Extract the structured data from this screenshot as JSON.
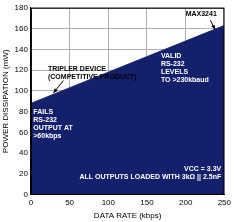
{
  "chart_data": {
    "type": "area",
    "x_label": "DATA RATE (kbps)",
    "y_label": "POWER DISSIPATION (mW)",
    "x": [
      0,
      250
    ],
    "values": [
      88,
      163
    ],
    "color": "#14206b",
    "xlim": [
      0,
      250
    ],
    "xticks": [
      0,
      50,
      100,
      150,
      200,
      250
    ],
    "ylim": [
      0,
      180
    ],
    "yticks": [
      0,
      20,
      40,
      60,
      80,
      100,
      120,
      140,
      160,
      180
    ],
    "grid": true,
    "annotations": [
      {
        "text": [
          "TRIPLER DEVICE",
          "(COMPETITIVE PRODUCT)"
        ]
      },
      {
        "text": [
          "FAILS",
          "RS-232",
          "OUTPUT AT",
          ">60kbps"
        ]
      },
      {
        "text": [
          "MAX3241"
        ]
      },
      {
        "text": [
          "VALID",
          "RS-232",
          "LEVELS",
          "TO >230kbaud"
        ]
      },
      {
        "text": [
          "VCC = 3.3V",
          "ALL OUTPUTS LOADED WITH 3kΩ || 2.5nF"
        ]
      }
    ]
  }
}
